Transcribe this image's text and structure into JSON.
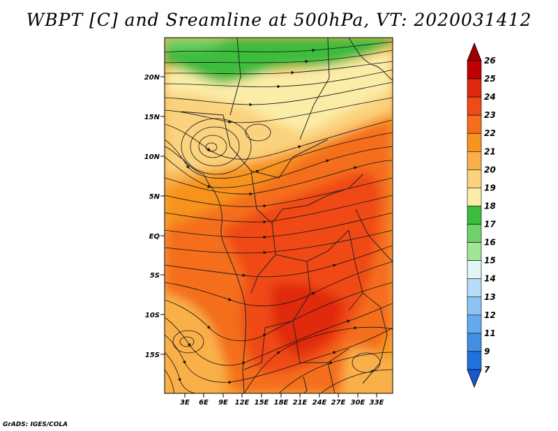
{
  "title": "WBPT [C] and Sreamline at 500hPa, VT: 2020031412",
  "credit": "GrADS: IGES/COLA",
  "lat_labels": [
    "20N",
    "15N",
    "10N",
    "5N",
    "EQ",
    "5S",
    "10S",
    "15S"
  ],
  "lon_labels": [
    "3E",
    "6E",
    "9E",
    "12E",
    "15E",
    "18E",
    "21E",
    "24E",
    "27E",
    "30E",
    "33E"
  ],
  "colorbar": {
    "levels": [
      "26",
      "25",
      "24",
      "23",
      "22",
      "21",
      "20",
      "19",
      "18",
      "17",
      "16",
      "15",
      "14",
      "13",
      "12",
      "11",
      "9",
      "7"
    ],
    "colors": [
      "#c00000",
      "#e02a10",
      "#f04a16",
      "#f46e1c",
      "#f7931f",
      "#f9b04a",
      "#fbd27e",
      "#fbeda8",
      "#3cbc3c",
      "#6fd26a",
      "#a0e598",
      "#dff6f4",
      "#b6dcf7",
      "#8ec4f4",
      "#65aaf0",
      "#4190e6",
      "#1f72dc"
    ],
    "top_color": "#a00000",
    "bottom_color": "#1858d0"
  },
  "colors": {
    "green_dark": "#3cbc3c",
    "green_mid": "#6fd26a",
    "yellow_pale": "#fbeda8",
    "yellow_light": "#fbd27e",
    "orange_light": "#f9b04a",
    "orange": "#f7931f",
    "orange_dark": "#f46e1c",
    "red_orange": "#f04a16",
    "red": "#e02a10"
  }
}
